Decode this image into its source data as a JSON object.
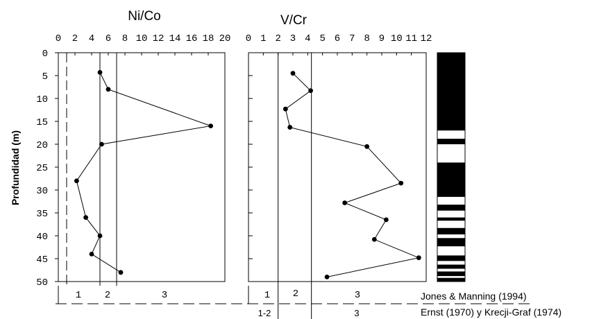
{
  "chart_data": [
    {
      "type": "line",
      "title": "Ni/Co",
      "ylabel": "Profundidad (m)",
      "xlim": [
        0,
        20
      ],
      "ylim": [
        50,
        0
      ],
      "x_ticks": [
        "0",
        "2",
        "4",
        "6",
        "8",
        "10",
        "12",
        "14",
        "16",
        "18",
        "20"
      ],
      "y_ticks": [
        "0",
        "5",
        "10",
        "15",
        "20",
        "25",
        "30",
        "35",
        "40",
        "45",
        "50"
      ],
      "points": [
        {
          "x": 5,
          "y": 4.3
        },
        {
          "x": 6,
          "y": 8
        },
        {
          "x": 18.3,
          "y": 16
        },
        {
          "x": 5.2,
          "y": 20
        },
        {
          "x": 2.2,
          "y": 28
        },
        {
          "x": 3.3,
          "y": 36
        },
        {
          "x": 5,
          "y": 40
        },
        {
          "x": 4,
          "y": 44
        },
        {
          "x": 7.5,
          "y": 48
        }
      ],
      "thresholds": [
        5,
        7
      ],
      "dashed_threshold": 1,
      "zone_labels": [
        "1",
        "2",
        "3"
      ]
    },
    {
      "type": "line",
      "title": "V/Cr",
      "xlim": [
        0,
        12
      ],
      "ylim": [
        50,
        0
      ],
      "x_ticks": [
        "0",
        "1",
        "2",
        "3",
        "4",
        "5",
        "6",
        "7",
        "8",
        "9",
        "10",
        "11",
        "12"
      ],
      "points": [
        {
          "x": 3,
          "y": 4.5
        },
        {
          "x": 4.2,
          "y": 8.3
        },
        {
          "x": 2.5,
          "y": 12.3
        },
        {
          "x": 2.8,
          "y": 16.3
        },
        {
          "x": 8,
          "y": 20.5
        },
        {
          "x": 10.3,
          "y": 28.5
        },
        {
          "x": 6.5,
          "y": 32.8
        },
        {
          "x": 9.3,
          "y": 36.5
        },
        {
          "x": 8.5,
          "y": 40.8
        },
        {
          "x": 11.5,
          "y": 44.8
        },
        {
          "x": 5.3,
          "y": 49
        }
      ],
      "thresholds": [
        2,
        4.25
      ],
      "zone_labels": [
        "1",
        "2",
        "3"
      ],
      "lower_zone_labels": [
        "1-2",
        "3"
      ]
    }
  ],
  "column": {
    "bands": [
      [
        0,
        17
      ],
      [
        18.8,
        20
      ],
      [
        24,
        31.5
      ],
      [
        33.2,
        34.5
      ],
      [
        36,
        36.7
      ],
      [
        38.3,
        39.7
      ],
      [
        40.5,
        42.3
      ],
      [
        44.3,
        45.5
      ],
      [
        46.3,
        47.2
      ],
      [
        47.8,
        48.8
      ],
      [
        49.2,
        50
      ]
    ]
  },
  "references": {
    "upper": "Jones & Manning (1994)",
    "lower": "Ernst (1970) y Krecji-Graf (1974)"
  },
  "colors": {
    "ink": "#000000",
    "background": "#ffffff"
  }
}
